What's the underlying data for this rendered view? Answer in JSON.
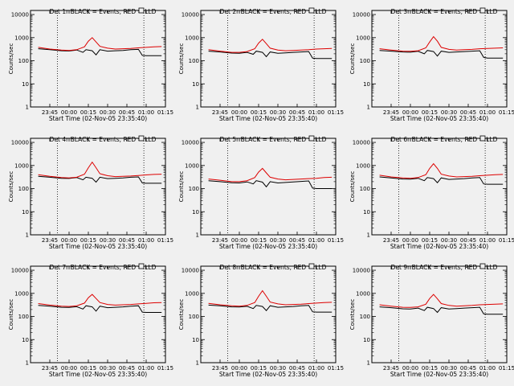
{
  "chart_data": [
    {
      "type": "line",
      "title": "Det 1r BLACK = Events, RED = LLD",
      "xlabel": "Start Time (02-Nov-05 23:35:40)",
      "ylabel": "Counts/sec",
      "yscale": "log",
      "ylim": [
        1,
        15000
      ],
      "xlim": [
        23.5,
        25.25
      ],
      "ytick_labels": [
        "1",
        "10",
        "100",
        "1000",
        "10000"
      ],
      "xtick_labels": [
        "23:45",
        "00:00",
        "00:15",
        "00:30",
        "00:45",
        "01:00",
        "01:15"
      ],
      "vlines": [
        23.85,
        24.97
      ],
      "series": [
        {
          "color": "#000000",
          "x": [
            23.6,
            23.75,
            23.9,
            24.0,
            24.1,
            24.18,
            24.22,
            24.3,
            24.35,
            24.4,
            24.5,
            24.6,
            24.7,
            24.8,
            24.9,
            24.95,
            25.0,
            25.1,
            25.2
          ],
          "values": [
            330,
            300,
            270,
            265,
            290,
            230,
            300,
            270,
            180,
            300,
            260,
            270,
            280,
            300,
            310,
            170,
            165,
            165,
            165
          ]
        },
        {
          "color": "#dd0000",
          "x": [
            23.6,
            23.75,
            23.9,
            24.0,
            24.1,
            24.2,
            24.25,
            24.3,
            24.35,
            24.4,
            24.5,
            24.6,
            24.7,
            24.8,
            24.9,
            25.0,
            25.1,
            25.2
          ],
          "values": [
            380,
            320,
            290,
            280,
            300,
            400,
            700,
            1000,
            650,
            420,
            350,
            320,
            330,
            340,
            360,
            380,
            400,
            410
          ]
        }
      ]
    },
    {
      "type": "line",
      "title": "Det 2r BLACK = Events, RED = LLD",
      "xlabel": "Start Time (02-Nov-05 23:35:40)",
      "ylabel": "Counts/sec",
      "yscale": "log",
      "ylim": [
        1,
        15000
      ],
      "xlim": [
        23.5,
        25.25
      ],
      "ytick_labels": [
        "1",
        "10",
        "100",
        "1000",
        "10000"
      ],
      "xtick_labels": [
        "23:45",
        "00:00",
        "00:15",
        "00:30",
        "00:45",
        "01:00",
        "01:15"
      ],
      "vlines": [
        23.85,
        24.97
      ],
      "series": [
        {
          "color": "#000000",
          "x": [
            23.6,
            23.75,
            23.9,
            24.0,
            24.1,
            24.18,
            24.22,
            24.3,
            24.35,
            24.4,
            24.5,
            24.6,
            24.7,
            24.8,
            24.9,
            24.95,
            25.0,
            25.1,
            25.2
          ],
          "values": [
            260,
            240,
            215,
            210,
            230,
            190,
            260,
            230,
            150,
            240,
            210,
            220,
            230,
            240,
            250,
            130,
            125,
            125,
            125
          ]
        },
        {
          "color": "#dd0000",
          "x": [
            23.6,
            23.75,
            23.9,
            24.0,
            24.1,
            24.2,
            24.25,
            24.3,
            24.35,
            24.4,
            24.5,
            24.6,
            24.7,
            24.8,
            24.9,
            25.0,
            25.1,
            25.2
          ],
          "values": [
            300,
            260,
            230,
            230,
            250,
            330,
            580,
            850,
            550,
            350,
            290,
            270,
            280,
            290,
            300,
            320,
            330,
            340
          ]
        }
      ]
    },
    {
      "type": "line",
      "title": "Det 3r BLACK = Events, RED = LLD",
      "xlabel": "Start Time (02-Nov-05 23:35:40)",
      "ylabel": "Counts/sec",
      "yscale": "log",
      "ylim": [
        1,
        15000
      ],
      "xlim": [
        23.5,
        25.25
      ],
      "ytick_labels": [
        "1",
        "10",
        "100",
        "1000",
        "10000"
      ],
      "xtick_labels": [
        "23:45",
        "00:00",
        "00:15",
        "00:30",
        "00:45",
        "01:00",
        "01:15"
      ],
      "vlines": [
        23.85,
        24.97
      ],
      "series": [
        {
          "color": "#000000",
          "x": [
            23.6,
            23.75,
            23.9,
            24.0,
            24.1,
            24.18,
            24.22,
            24.3,
            24.35,
            24.4,
            24.5,
            24.6,
            24.7,
            24.8,
            24.9,
            24.95,
            25.0,
            25.1,
            25.2
          ],
          "values": [
            280,
            260,
            240,
            235,
            255,
            200,
            280,
            250,
            160,
            260,
            230,
            240,
            250,
            260,
            270,
            140,
            130,
            130,
            130
          ]
        },
        {
          "color": "#dd0000",
          "x": [
            23.6,
            23.75,
            23.9,
            24.0,
            24.1,
            24.2,
            24.25,
            24.3,
            24.35,
            24.4,
            24.5,
            24.6,
            24.7,
            24.8,
            24.9,
            25.0,
            25.1,
            25.2
          ],
          "values": [
            330,
            290,
            260,
            255,
            270,
            360,
            650,
            1100,
            700,
            380,
            310,
            290,
            300,
            310,
            330,
            340,
            350,
            360
          ]
        }
      ]
    },
    {
      "type": "line",
      "title": "Det 4r BLACK = Events, RED = LLD",
      "xlabel": "Start Time (02-Nov-05 23:35:40)",
      "ylabel": "Counts/sec",
      "yscale": "log",
      "ylim": [
        1,
        15000
      ],
      "xlim": [
        23.5,
        25.25
      ],
      "ytick_labels": [
        "1",
        "10",
        "100",
        "1000",
        "10000"
      ],
      "xtick_labels": [
        "23:45",
        "00:00",
        "00:15",
        "00:30",
        "00:45",
        "01:00",
        "01:15"
      ],
      "vlines": [
        23.85,
        24.97
      ],
      "series": [
        {
          "color": "#000000",
          "x": [
            23.6,
            23.75,
            23.9,
            24.0,
            24.1,
            24.18,
            24.22,
            24.3,
            24.35,
            24.4,
            24.5,
            24.6,
            24.7,
            24.8,
            24.9,
            24.95,
            25.0,
            25.1,
            25.2
          ],
          "values": [
            340,
            310,
            280,
            275,
            300,
            240,
            310,
            280,
            190,
            310,
            270,
            280,
            290,
            310,
            320,
            175,
            170,
            170,
            170
          ]
        },
        {
          "color": "#dd0000",
          "x": [
            23.6,
            23.75,
            23.9,
            24.0,
            24.1,
            24.2,
            24.25,
            24.3,
            24.35,
            24.4,
            24.5,
            24.6,
            24.7,
            24.8,
            24.9,
            25.0,
            25.1,
            25.2
          ],
          "values": [
            400,
            340,
            300,
            290,
            310,
            420,
            800,
            1400,
            800,
            440,
            360,
            330,
            340,
            350,
            370,
            390,
            410,
            420
          ]
        }
      ]
    },
    {
      "type": "line",
      "title": "Det 5r BLACK = Events, RED = LLD",
      "xlabel": "Start Time (02-Nov-05 23:35:40)",
      "ylabel": "Counts/sec",
      "yscale": "log",
      "ylim": [
        1,
        15000
      ],
      "xlim": [
        23.5,
        25.25
      ],
      "ytick_labels": [
        "1",
        "10",
        "100",
        "1000",
        "10000"
      ],
      "xtick_labels": [
        "23:45",
        "00:00",
        "00:15",
        "00:30",
        "00:45",
        "01:00",
        "01:15"
      ],
      "vlines": [
        23.85,
        24.97
      ],
      "series": [
        {
          "color": "#000000",
          "x": [
            23.6,
            23.75,
            23.9,
            24.0,
            24.1,
            24.18,
            24.22,
            24.3,
            24.35,
            24.4,
            24.5,
            24.6,
            24.7,
            24.8,
            24.9,
            24.95,
            25.0,
            25.1,
            25.2
          ],
          "values": [
            220,
            200,
            180,
            175,
            195,
            160,
            220,
            190,
            120,
            200,
            175,
            185,
            195,
            205,
            215,
            105,
            100,
            100,
            100
          ]
        },
        {
          "color": "#dd0000",
          "x": [
            23.6,
            23.75,
            23.9,
            24.0,
            24.1,
            24.2,
            24.25,
            24.3,
            24.35,
            24.4,
            24.5,
            24.6,
            24.7,
            24.8,
            24.9,
            25.0,
            25.1,
            25.2
          ],
          "values": [
            260,
            230,
            200,
            200,
            220,
            300,
            520,
            750,
            480,
            310,
            260,
            240,
            250,
            260,
            270,
            280,
            300,
            310
          ]
        }
      ]
    },
    {
      "type": "line",
      "title": "Det 6r BLACK = Events, RED = LLD",
      "xlabel": "Start Time (02-Nov-05 23:35:40)",
      "ylabel": "Counts/sec",
      "yscale": "log",
      "ylim": [
        1,
        15000
      ],
      "xlim": [
        23.5,
        25.25
      ],
      "ytick_labels": [
        "1",
        "10",
        "100",
        "1000",
        "10000"
      ],
      "xtick_labels": [
        "23:45",
        "00:00",
        "00:15",
        "00:30",
        "00:45",
        "01:00",
        "01:15"
      ],
      "vlines": [
        23.85,
        24.97
      ],
      "series": [
        {
          "color": "#000000",
          "x": [
            23.6,
            23.75,
            23.9,
            24.0,
            24.1,
            24.18,
            24.22,
            24.3,
            24.35,
            24.4,
            24.5,
            24.6,
            24.7,
            24.8,
            24.9,
            24.95,
            25.0,
            25.1,
            25.2
          ],
          "values": [
            320,
            290,
            260,
            255,
            280,
            220,
            300,
            270,
            180,
            290,
            250,
            260,
            270,
            290,
            300,
            160,
            155,
            155,
            155
          ]
        },
        {
          "color": "#dd0000",
          "x": [
            23.6,
            23.75,
            23.9,
            24.0,
            24.1,
            24.2,
            24.25,
            24.3,
            24.35,
            24.4,
            24.5,
            24.6,
            24.7,
            24.8,
            24.9,
            25.0,
            25.1,
            25.2
          ],
          "values": [
            380,
            320,
            290,
            280,
            300,
            400,
            750,
            1200,
            750,
            420,
            350,
            320,
            330,
            340,
            360,
            380,
            400,
            410
          ]
        }
      ]
    },
    {
      "type": "line",
      "title": "Det 7r BLACK = Events, RED = LLD",
      "xlabel": "Start Time (02-Nov-05 23:35:40)",
      "ylabel": "Counts/sec",
      "yscale": "log",
      "ylim": [
        1,
        15000
      ],
      "xlim": [
        23.5,
        25.25
      ],
      "ytick_labels": [
        "1",
        "10",
        "100",
        "1000",
        "10000"
      ],
      "xtick_labels": [
        "23:45",
        "00:00",
        "00:15",
        "00:30",
        "00:45",
        "01:00",
        "01:15"
      ],
      "vlines": [
        23.85,
        24.97
      ],
      "series": [
        {
          "color": "#000000",
          "x": [
            23.6,
            23.75,
            23.9,
            24.0,
            24.1,
            24.18,
            24.22,
            24.3,
            24.35,
            24.4,
            24.5,
            24.6,
            24.7,
            24.8,
            24.9,
            24.95,
            25.0,
            25.1,
            25.2
          ],
          "values": [
            300,
            280,
            250,
            245,
            265,
            210,
            290,
            260,
            170,
            280,
            240,
            250,
            260,
            280,
            290,
            155,
            150,
            150,
            150
          ]
        },
        {
          "color": "#dd0000",
          "x": [
            23.6,
            23.75,
            23.9,
            24.0,
            24.1,
            24.2,
            24.25,
            24.3,
            24.35,
            24.4,
            24.5,
            24.6,
            24.7,
            24.8,
            24.9,
            25.0,
            25.1,
            25.2
          ],
          "values": [
            360,
            310,
            280,
            270,
            290,
            380,
            650,
            900,
            600,
            400,
            330,
            310,
            320,
            330,
            350,
            370,
            390,
            400
          ]
        }
      ]
    },
    {
      "type": "line",
      "title": "Det 8r BLACK = Events, RED = LLD",
      "xlabel": "Start Time (02-Nov-05 23:35:40)",
      "ylabel": "Counts/sec",
      "yscale": "log",
      "ylim": [
        1,
        15000
      ],
      "xlim": [
        23.5,
        25.25
      ],
      "ytick_labels": [
        "1",
        "10",
        "100",
        "1000",
        "10000"
      ],
      "xtick_labels": [
        "23:45",
        "00:00",
        "00:15",
        "00:30",
        "00:45",
        "01:00",
        "01:15"
      ],
      "vlines": [
        23.85,
        24.97
      ],
      "series": [
        {
          "color": "#000000",
          "x": [
            23.6,
            23.75,
            23.9,
            24.0,
            24.1,
            24.18,
            24.22,
            24.3,
            24.35,
            24.4,
            24.5,
            24.6,
            24.7,
            24.8,
            24.9,
            24.95,
            25.0,
            25.1,
            25.2
          ],
          "values": [
            310,
            290,
            260,
            255,
            275,
            220,
            300,
            270,
            180,
            290,
            250,
            260,
            270,
            290,
            300,
            160,
            155,
            155,
            155
          ]
        },
        {
          "color": "#dd0000",
          "x": [
            23.6,
            23.75,
            23.9,
            24.0,
            24.1,
            24.2,
            24.25,
            24.3,
            24.35,
            24.4,
            24.5,
            24.6,
            24.7,
            24.8,
            24.9,
            25.0,
            25.1,
            25.2
          ],
          "values": [
            370,
            320,
            290,
            280,
            300,
            400,
            750,
            1300,
            750,
            420,
            350,
            320,
            330,
            340,
            360,
            380,
            400,
            410
          ]
        }
      ]
    },
    {
      "type": "line",
      "title": "Det 9r BLACK = Events, RED = LLD",
      "xlabel": "Start Time (02-Nov-05 23:35:40)",
      "ylabel": "Counts/sec",
      "yscale": "log",
      "ylim": [
        1,
        15000
      ],
      "xlim": [
        23.5,
        25.25
      ],
      "ytick_labels": [
        "1",
        "10",
        "100",
        "1000",
        "10000"
      ],
      "xtick_labels": [
        "23:45",
        "00:00",
        "00:15",
        "00:30",
        "00:45",
        "01:00",
        "01:15"
      ],
      "vlines": [
        23.85,
        24.97
      ],
      "series": [
        {
          "color": "#000000",
          "x": [
            23.6,
            23.75,
            23.9,
            24.0,
            24.1,
            24.18,
            24.22,
            24.3,
            24.35,
            24.4,
            24.5,
            24.6,
            24.7,
            24.8,
            24.9,
            24.95,
            25.0,
            25.1,
            25.2
          ],
          "values": [
            260,
            240,
            215,
            210,
            230,
            180,
            250,
            220,
            150,
            240,
            210,
            220,
            230,
            240,
            250,
            130,
            125,
            125,
            125
          ]
        },
        {
          "color": "#dd0000",
          "x": [
            23.6,
            23.75,
            23.9,
            24.0,
            24.1,
            24.2,
            24.25,
            24.3,
            24.35,
            24.4,
            24.5,
            24.6,
            24.7,
            24.8,
            24.9,
            25.0,
            25.1,
            25.2
          ],
          "values": [
            320,
            280,
            250,
            245,
            260,
            340,
            600,
            900,
            580,
            360,
            300,
            280,
            290,
            300,
            320,
            330,
            340,
            350
          ]
        }
      ]
    }
  ]
}
